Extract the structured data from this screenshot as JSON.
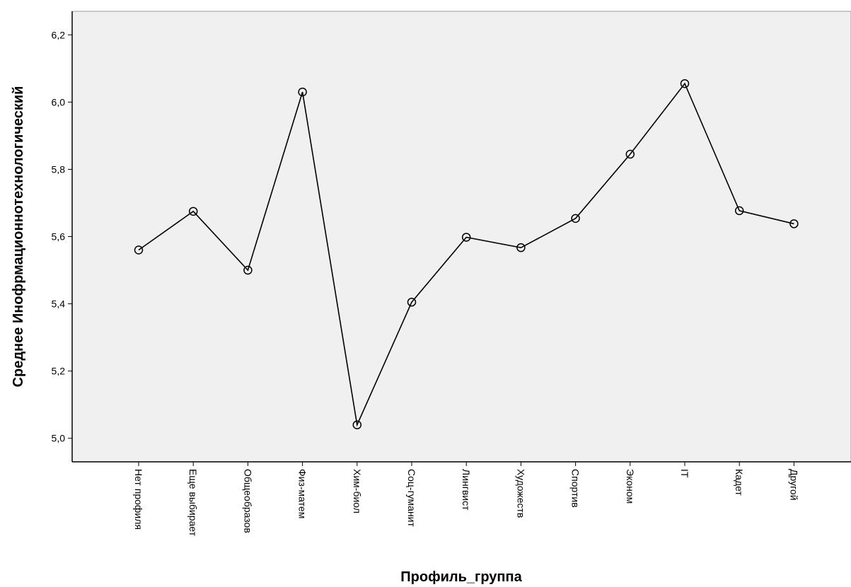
{
  "chart_data": {
    "type": "line",
    "xlabel": "Профиль_группа",
    "ylabel": "Среднее Инофрмационнотехнологический",
    "categories": [
      "Нет профиля",
      "Еще выбирает",
      "Общеобразов",
      "Физ-матем",
      "Хим-биол",
      "Соц-гуманит",
      "Лингвист",
      "Художеств",
      "Спортив",
      "Эконом",
      "IT",
      "Кадет",
      "Другой"
    ],
    "values": [
      5.56,
      5.675,
      5.5,
      6.03,
      5.04,
      5.405,
      5.598,
      5.567,
      5.654,
      5.845,
      6.055,
      5.677,
      5.638
    ],
    "ylim": [
      4.93,
      6.27
    ],
    "yticks": [
      5.0,
      5.2,
      5.4,
      5.6,
      5.8,
      6.0,
      6.2
    ],
    "ytick_labels": [
      "5,0",
      "5,2",
      "5,4",
      "5,6",
      "5,8",
      "6,0",
      "6,2"
    ],
    "grid": false,
    "marker": "circle",
    "colors": {
      "line": "#000000",
      "plot_bg": "#f0f0f0",
      "axis": "#000000"
    }
  }
}
